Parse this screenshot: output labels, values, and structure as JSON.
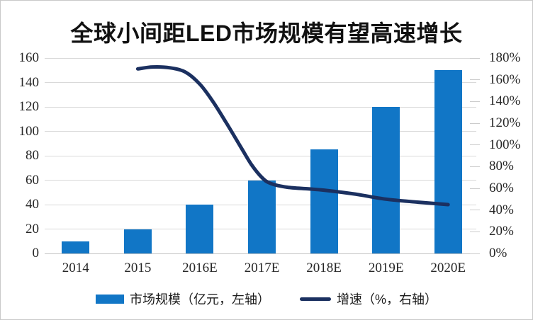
{
  "chart_data": {
    "type": "bar+line-combo",
    "title": "全球小间距LED市场规模有望高速增长",
    "categories": [
      "2014",
      "2015",
      "2016E",
      "2017E",
      "2018E",
      "2019E",
      "2020E"
    ],
    "series": [
      {
        "name": "市场规模（亿元，左轴）",
        "type": "bar",
        "axis": "left",
        "values": [
          10,
          20,
          40,
          60,
          85,
          120,
          150
        ],
        "color": "#1176C6"
      },
      {
        "name": "增速（%，右轴）",
        "type": "line",
        "axis": "right",
        "values_pct": [
          null,
          170,
          155,
          70,
          58,
          50,
          45
        ],
        "color": "#1B3060"
      }
    ],
    "left_axis": {
      "min": 0,
      "max": 160,
      "step": 20,
      "tick_labels": [
        "0",
        "20",
        "40",
        "60",
        "80",
        "100",
        "120",
        "140",
        "160"
      ]
    },
    "right_axis": {
      "min": 0,
      "max": 180,
      "step": 20,
      "tick_labels": [
        "0%",
        "20%",
        "40%",
        "60%",
        "80%",
        "100%",
        "120%",
        "140%",
        "160%",
        "180%"
      ]
    },
    "curve_shape_samples": [
      [
        1.0,
        170
      ],
      [
        1.24,
        171.8
      ],
      [
        1.52,
        171
      ],
      [
        1.77,
        167
      ],
      [
        2.0,
        156
      ],
      [
        2.21,
        140
      ],
      [
        2.43,
        120
      ],
      [
        2.66,
        98
      ],
      [
        2.83,
        82
      ],
      [
        3.0,
        70
      ],
      [
        3.14,
        64.5
      ],
      [
        3.41,
        61
      ],
      [
        3.75,
        59.5
      ],
      [
        4.0,
        58.3
      ],
      [
        4.49,
        54.8
      ],
      [
        5.0,
        50
      ],
      [
        5.52,
        47.2
      ],
      [
        6.0,
        45
      ]
    ],
    "grid": {
      "color": "#D9D9D9",
      "baseline_color": "#C4C4C4",
      "horizontal_lines": true
    },
    "legend_position": "bottom",
    "text_color": "#262626"
  }
}
